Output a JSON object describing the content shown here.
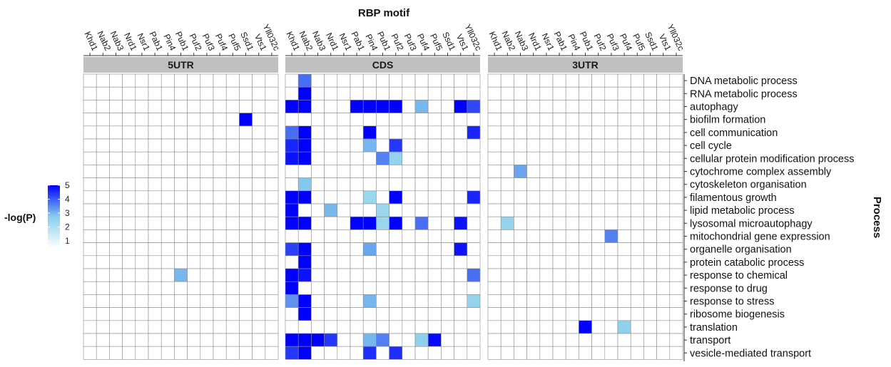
{
  "chart_data": {
    "type": "heatmap",
    "x_title": "RBP motif",
    "y_title": "Process",
    "legend": {
      "title": "-log(P)",
      "ticks": [
        1,
        2,
        3,
        4,
        5
      ],
      "range": [
        0.5,
        5
      ],
      "low_color": "#ffffff",
      "mid_color": "#87ceeb",
      "high_color": "#0000ff",
      "placement": "left"
    },
    "grid_color": "#8c8c8c",
    "strip_color": "#c0c0c0",
    "processes": [
      "DNA metabolic process",
      "RNA metabolic process",
      "autophagy",
      "biofilm formation",
      "cell communication",
      "cell cycle",
      "cellular protein modification process",
      "cytochrome complex assembly",
      "cytoskeleton organisation",
      "filamentous growth",
      "lipid metabolic process",
      "lysosomal microautophagy",
      "mitochondrial gene expression",
      "organelle organisation",
      "protein catabolic process",
      "response to chemical",
      "response to drug",
      "response to stress",
      "ribosome biogenesis",
      "translation",
      "transport",
      "vesicle-mediated transport"
    ],
    "panels": [
      {
        "name": "5UTR",
        "motifs": [
          "Khd1",
          "Nab2",
          "Nab3",
          "Nrd1",
          "Nsr1",
          "Pab1",
          "Pin4",
          "Pub1",
          "Puf2",
          "Puf3",
          "Puf4",
          "Puf5",
          "Ssd1",
          "Vts1",
          "Yll032c"
        ],
        "values": [
          [
            0,
            0,
            0,
            0,
            0,
            0,
            0,
            0,
            0,
            0,
            0,
            0,
            0,
            0,
            0
          ],
          [
            0,
            0,
            0,
            0,
            0,
            0,
            0,
            0,
            0,
            0,
            0,
            0,
            0,
            0,
            0
          ],
          [
            0,
            0,
            0,
            0,
            0,
            0,
            0,
            0,
            0,
            0,
            0,
            0,
            0,
            0,
            0
          ],
          [
            0,
            0,
            0,
            0,
            0,
            0,
            0,
            0,
            0,
            0,
            0,
            0,
            5.0,
            0,
            0
          ],
          [
            0,
            0,
            0,
            0,
            0,
            0,
            0,
            0,
            0,
            0,
            0,
            0,
            0,
            0,
            0
          ],
          [
            0,
            0,
            0,
            0,
            0,
            0,
            0,
            0,
            0,
            0,
            0,
            0,
            0,
            0,
            0
          ],
          [
            0,
            0,
            0,
            0,
            0,
            0,
            0,
            0,
            0,
            0,
            0,
            0,
            0,
            0,
            0
          ],
          [
            0,
            0,
            0,
            0,
            0,
            0,
            0,
            0,
            0,
            0,
            0,
            0,
            0,
            0,
            0
          ],
          [
            0,
            0,
            0,
            0,
            0,
            0,
            0,
            0,
            0,
            0,
            0,
            0,
            0,
            0,
            0
          ],
          [
            0,
            0,
            0,
            0,
            0,
            0,
            0,
            0,
            0,
            0,
            0,
            0,
            0,
            0,
            0
          ],
          [
            0,
            0,
            0,
            0,
            0,
            0,
            0,
            0,
            0,
            0,
            0,
            0,
            0,
            0,
            0
          ],
          [
            0,
            0,
            0,
            0,
            0,
            0,
            0,
            0,
            0,
            0,
            0,
            0,
            0,
            0,
            0
          ],
          [
            0,
            0,
            0,
            0,
            0,
            0,
            0,
            0,
            0,
            0,
            0,
            0,
            0,
            0,
            0
          ],
          [
            0,
            0,
            0,
            0,
            0,
            0,
            0,
            0,
            0,
            0,
            0,
            0,
            0,
            0,
            0
          ],
          [
            0,
            0,
            0,
            0,
            0,
            0,
            0,
            0,
            0,
            0,
            0,
            0,
            0,
            0,
            0
          ],
          [
            0,
            0,
            0,
            0,
            0,
            0,
            0,
            3.0,
            0,
            0,
            0,
            0,
            0,
            0,
            0
          ],
          [
            0,
            0,
            0,
            0,
            0,
            0,
            0,
            0,
            0,
            0,
            0,
            0,
            0,
            0,
            0
          ],
          [
            0,
            0,
            0,
            0,
            0,
            0,
            0,
            0,
            0,
            0,
            0,
            0,
            0,
            0,
            0
          ],
          [
            0,
            0,
            0,
            0,
            0,
            0,
            0,
            0,
            0,
            0,
            0,
            0,
            0,
            0,
            0
          ],
          [
            0,
            0,
            0,
            0,
            0,
            0,
            0,
            0,
            0,
            0,
            0,
            0,
            0,
            0,
            0
          ],
          [
            0,
            0,
            0,
            0,
            0,
            0,
            0,
            0,
            0,
            0,
            0,
            0,
            0,
            0,
            0
          ],
          [
            0,
            0,
            0,
            0,
            0,
            0,
            0,
            0,
            0,
            0,
            0,
            0,
            0,
            0,
            0
          ]
        ]
      },
      {
        "name": "CDS",
        "motifs": [
          "Khd1",
          "Nab2",
          "Nab3",
          "Nrd1",
          "Nsr1",
          "Pab1",
          "Pin4",
          "Pub1",
          "Puf2",
          "Puf3",
          "Puf4",
          "Puf5",
          "Ssd1",
          "Vts1",
          "Yll032c"
        ],
        "values": [
          [
            0,
            3.8,
            0,
            0,
            0,
            0,
            0,
            0,
            0,
            0,
            0,
            0,
            0,
            0,
            0
          ],
          [
            0,
            5.0,
            0,
            0,
            0,
            0,
            0,
            0,
            0,
            0,
            0,
            0,
            0,
            0,
            0
          ],
          [
            5.0,
            5.0,
            0,
            0,
            0,
            5.0,
            5.0,
            5.0,
            5.0,
            0,
            3.0,
            0,
            0,
            5.0,
            4.2
          ],
          [
            0,
            0,
            0,
            0,
            0,
            0,
            0,
            0,
            0,
            0,
            0,
            0,
            0,
            0,
            0
          ],
          [
            3.8,
            5.0,
            0,
            0,
            0,
            0,
            5.0,
            0,
            0,
            0,
            0,
            0,
            0,
            0,
            4.6
          ],
          [
            4.6,
            5.0,
            0,
            0,
            0,
            0,
            3.0,
            0,
            4.4,
            0,
            0,
            0,
            0,
            0,
            0
          ],
          [
            4.8,
            5.0,
            0,
            0,
            0,
            0,
            0,
            3.6,
            2.5,
            0,
            0,
            0,
            0,
            0,
            0
          ],
          [
            0,
            0,
            0,
            0,
            0,
            0,
            0,
            0,
            0,
            0,
            0,
            0,
            0,
            0,
            0
          ],
          [
            0,
            2.8,
            0,
            0,
            0,
            0,
            0,
            0,
            0,
            0,
            0,
            0,
            0,
            0,
            0
          ],
          [
            5.0,
            5.0,
            0,
            0,
            0,
            0,
            2.4,
            0,
            5.0,
            0,
            0,
            0,
            0,
            0,
            4.6
          ],
          [
            5.0,
            0,
            0,
            3.0,
            0,
            0,
            0,
            2.4,
            0,
            0,
            0,
            0,
            0,
            0,
            0
          ],
          [
            5.0,
            5.0,
            0,
            0,
            0,
            5.0,
            5.0,
            2.4,
            5.0,
            0,
            3.8,
            0,
            0,
            4.8,
            0
          ],
          [
            0,
            0,
            0,
            0,
            0,
            0,
            0,
            0,
            0,
            0,
            0,
            0,
            0,
            0,
            0
          ],
          [
            4.3,
            5.0,
            0,
            0,
            0,
            0,
            3.2,
            0,
            0,
            0,
            0,
            0,
            0,
            4.8,
            0
          ],
          [
            0,
            5.0,
            0,
            0,
            0,
            0,
            0,
            0,
            0,
            0,
            0,
            0,
            0,
            0,
            0
          ],
          [
            5.0,
            4.8,
            0,
            0,
            0,
            0,
            0,
            0,
            0,
            0,
            0,
            0,
            0,
            0,
            3.8
          ],
          [
            5.0,
            0,
            0,
            0,
            0,
            0,
            0,
            0,
            0,
            0,
            0,
            0,
            0,
            0,
            0
          ],
          [
            3.4,
            5.0,
            0,
            0,
            0,
            0,
            3.0,
            0,
            0,
            0,
            0,
            0,
            0,
            0,
            2.5
          ],
          [
            0,
            5.0,
            0,
            0,
            0,
            0,
            0,
            0,
            0,
            0,
            0,
            0,
            0,
            0,
            0
          ],
          [
            0,
            0,
            0,
            0,
            0,
            0,
            0,
            0,
            0,
            0,
            0,
            0,
            0,
            0,
            0
          ],
          [
            5.0,
            5.0,
            5.0,
            4.4,
            0,
            0,
            3.0,
            3.6,
            0,
            0,
            2.6,
            4.9,
            0,
            0,
            0
          ],
          [
            4.4,
            5.0,
            0,
            0,
            0,
            0,
            4.5,
            0,
            4.5,
            0,
            0,
            0,
            0,
            0,
            0
          ]
        ]
      },
      {
        "name": "3UTR",
        "motifs": [
          "Khd1",
          "Nab2",
          "Nab3",
          "Nrd1",
          "Nsr1",
          "Pab1",
          "Pin4",
          "Pub1",
          "Puf2",
          "Puf3",
          "Puf4",
          "Puf5",
          "Ssd1",
          "Vts1",
          "Yll032c"
        ],
        "values": [
          [
            0,
            0,
            0,
            0,
            0,
            0,
            0,
            0,
            0,
            0,
            0,
            0,
            0,
            0,
            0
          ],
          [
            0,
            0,
            0,
            0,
            0,
            0,
            0,
            0,
            0,
            0,
            0,
            0,
            0,
            0,
            0
          ],
          [
            0,
            0,
            0,
            0,
            0,
            0,
            0,
            0,
            0,
            0,
            0,
            0,
            0,
            0,
            0
          ],
          [
            0,
            0,
            0,
            0,
            0,
            0,
            0,
            0,
            0,
            0,
            0,
            0,
            0,
            0,
            0
          ],
          [
            0,
            0,
            0,
            0,
            0,
            0,
            0,
            0,
            0,
            0,
            0,
            0,
            0,
            0,
            0
          ],
          [
            0,
            0,
            0,
            0,
            0,
            0,
            0,
            0,
            0,
            0,
            0,
            0,
            0,
            0,
            0
          ],
          [
            0,
            0,
            0,
            0,
            0,
            0,
            0,
            0,
            0,
            0,
            0,
            0,
            0,
            0,
            0
          ],
          [
            0,
            0,
            3.2,
            0,
            0,
            0,
            0,
            0,
            0,
            0,
            0,
            0,
            0,
            0,
            0
          ],
          [
            0,
            0,
            0,
            0,
            0,
            0,
            0,
            0,
            0,
            0,
            0,
            0,
            0,
            0,
            0
          ],
          [
            0,
            0,
            0,
            0,
            0,
            0,
            0,
            0,
            0,
            0,
            0,
            0,
            0,
            0,
            0
          ],
          [
            0,
            0,
            0,
            0,
            0,
            0,
            0,
            0,
            0,
            0,
            0,
            0,
            0,
            0,
            0
          ],
          [
            0,
            2.5,
            0,
            0,
            0,
            0,
            0,
            0,
            0,
            0,
            0,
            0,
            0,
            0,
            0
          ],
          [
            0,
            0,
            0,
            0,
            0,
            0,
            0,
            0,
            0,
            3.6,
            0,
            0,
            0,
            0,
            0
          ],
          [
            0,
            0,
            0,
            0,
            0,
            0,
            0,
            0,
            0,
            0,
            0,
            0,
            0,
            0,
            0
          ],
          [
            0,
            0,
            0,
            0,
            0,
            0,
            0,
            0,
            0,
            0,
            0,
            0,
            0,
            0,
            0
          ],
          [
            0,
            0,
            0,
            0,
            0,
            0,
            0,
            0,
            0,
            0,
            0,
            0,
            0,
            0,
            0
          ],
          [
            0,
            0,
            0,
            0,
            0,
            0,
            0,
            0,
            0,
            0,
            0,
            0,
            0,
            0,
            0
          ],
          [
            0,
            0,
            0,
            0,
            0,
            0,
            0,
            0,
            0,
            0,
            0,
            0,
            0,
            0,
            0
          ],
          [
            0,
            0,
            0,
            0,
            0,
            0,
            0,
            0,
            0,
            0,
            0,
            0,
            0,
            0,
            0
          ],
          [
            0,
            0,
            0,
            0,
            0,
            0,
            0,
            5.0,
            0,
            0,
            2.6,
            0,
            0,
            0,
            0
          ],
          [
            0,
            0,
            0,
            0,
            0,
            0,
            0,
            0,
            0,
            0,
            0,
            0,
            0,
            0,
            0
          ],
          [
            0,
            0,
            0,
            0,
            0,
            0,
            0,
            0,
            0,
            0,
            0,
            0,
            0,
            0,
            0
          ]
        ]
      }
    ]
  }
}
